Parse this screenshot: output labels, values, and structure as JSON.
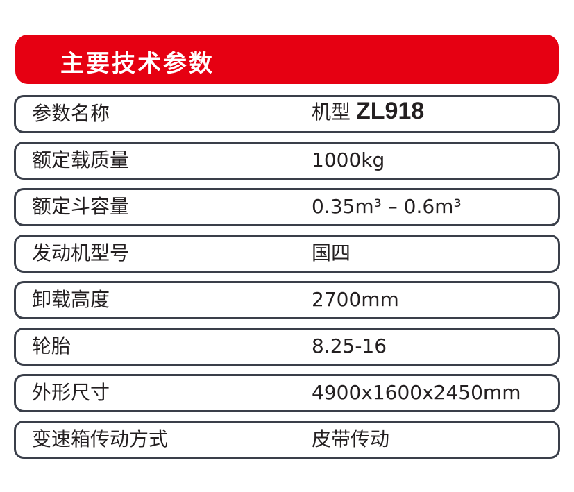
{
  "header": {
    "title": "主要技术参数",
    "color": "#e60012"
  },
  "table_header": {
    "label": "参数名称",
    "value_prefix": "机型",
    "model": "ZL918"
  },
  "rows": [
    {
      "label": "额定载质量",
      "value": "1000kg"
    },
    {
      "label": "额定斗容量",
      "value": "0.35m³ – 0.6m³"
    },
    {
      "label": "发动机型号",
      "value": "国四"
    },
    {
      "label": "卸载高度",
      "value": "2700mm"
    },
    {
      "label": "轮胎",
      "value": "8.25-16"
    },
    {
      "label": "外形尺寸",
      "value": "4900x1600x2450mm"
    },
    {
      "label": "变速箱传动方式",
      "value": "皮带传动"
    }
  ]
}
